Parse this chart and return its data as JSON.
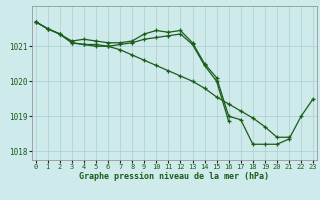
{
  "title": "Graphe pression niveau de la mer (hPa)",
  "background_color": "#ceeaea",
  "grid_color": "#aacece",
  "line_color": "#1a5c1a",
  "hours": [
    0,
    1,
    2,
    3,
    4,
    5,
    6,
    7,
    8,
    9,
    10,
    11,
    12,
    13,
    14,
    15,
    16,
    17,
    18,
    19,
    20,
    21,
    22,
    23
  ],
  "line1": [
    1021.7,
    1021.5,
    1021.35,
    1021.1,
    1021.05,
    1021.05,
    1021.0,
    1021.05,
    1021.1,
    1021.2,
    1021.25,
    1021.3,
    1021.35,
    1021.05,
    1020.45,
    1020.0,
    1018.85,
    null,
    null,
    null,
    null,
    null,
    null,
    null
  ],
  "line2": [
    1021.7,
    1021.5,
    1021.35,
    1021.15,
    1021.2,
    1021.15,
    1021.1,
    1021.1,
    1021.15,
    1021.35,
    1021.45,
    1021.4,
    1021.45,
    1021.1,
    1020.5,
    1020.1,
    1019.0,
    1018.9,
    1018.2,
    1018.2,
    1018.2,
    1018.35,
    1019.0,
    1019.5
  ],
  "line3": [
    1021.7,
    1021.5,
    1021.35,
    1021.1,
    1021.05,
    1021.0,
    1021.0,
    1020.9,
    1020.75,
    1020.6,
    1020.45,
    1020.3,
    1020.15,
    1020.0,
    1019.8,
    1019.55,
    1019.35,
    1019.15,
    1018.95,
    1018.7,
    1018.4,
    1018.4,
    null,
    null
  ],
  "ylim": [
    1017.75,
    1022.15
  ],
  "yticks": [
    1018,
    1019,
    1020,
    1021
  ],
  "xlim": [
    -0.3,
    23.3
  ],
  "xticks": [
    0,
    1,
    2,
    3,
    4,
    5,
    6,
    7,
    8,
    9,
    10,
    11,
    12,
    13,
    14,
    15,
    16,
    17,
    18,
    19,
    20,
    21,
    22,
    23
  ]
}
